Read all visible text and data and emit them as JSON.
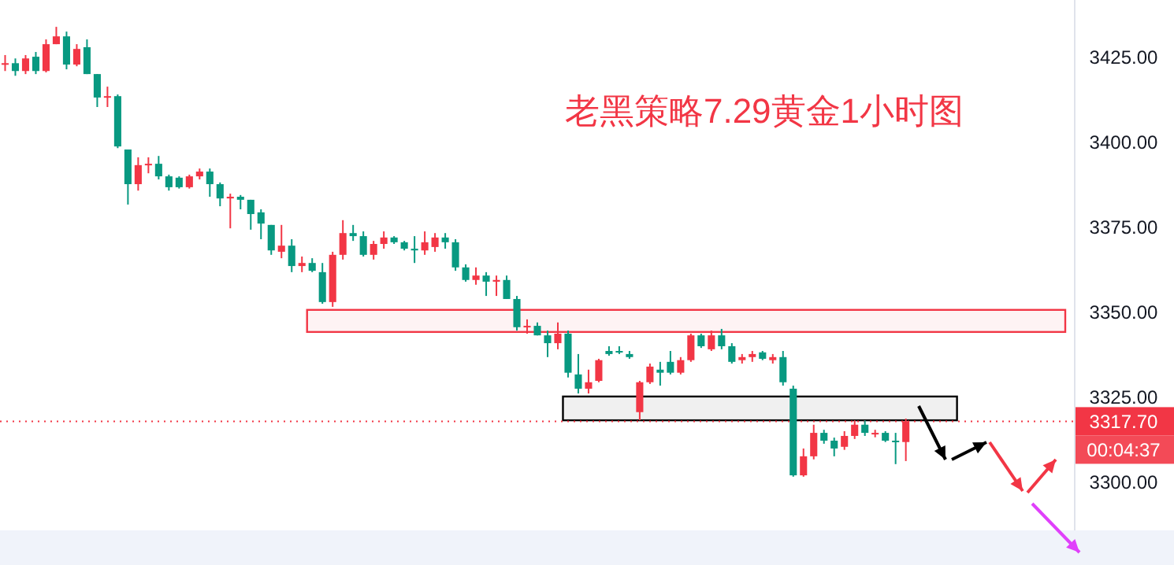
{
  "chart_data": {
    "type": "candlestick",
    "title": "老黑策略7.29黄金1小时图",
    "categories": [
      null,
      null,
      null,
      null,
      null,
      null,
      null,
      null,
      null,
      null,
      null,
      null,
      null,
      null,
      null,
      null,
      null,
      null,
      null,
      null,
      null,
      null,
      null,
      null,
      null,
      null,
      null,
      null,
      null,
      null,
      null,
      null,
      null,
      null,
      null,
      null,
      null,
      null,
      null,
      null,
      null,
      null,
      null,
      null,
      null,
      null,
      null,
      null,
      null,
      null,
      null,
      null,
      null,
      null,
      null,
      null,
      null,
      null,
      null,
      null,
      null,
      null,
      null,
      null,
      null,
      null,
      null,
      null,
      null,
      null,
      null,
      null,
      null,
      null,
      null,
      null,
      null,
      null,
      null,
      null,
      null,
      null,
      null,
      null,
      null,
      null,
      null,
      null,
      null,
      null,
      null,
      null,
      null,
      null,
      null,
      null,
      null,
      null,
      null,
      null,
      null,
      null,
      null,
      null,
      null
    ],
    "ohlc": [
      [
        3423.1,
        3425.5,
        3420.8,
        3423.1
      ],
      [
        3423.1,
        3424.5,
        3419.4,
        3420.8
      ],
      [
        3420.8,
        3425.5,
        3419.9,
        3424.5
      ],
      [
        3425,
        3426.4,
        3419.9,
        3420.8
      ],
      [
        3420.8,
        3430.1,
        3420.4,
        3428.7
      ],
      [
        3428.7,
        3433.8,
        3428.7,
        3431.0
      ],
      [
        3431.0,
        3432.4,
        3421.3,
        3422.7
      ],
      [
        3422.7,
        3428.7,
        3422.2,
        3427.3
      ],
      [
        3427.8,
        3430.1,
        3419.9,
        3419.9
      ],
      [
        3419.9,
        3419.9,
        3410.2,
        3413.0
      ],
      [
        3413.0,
        3416.2,
        3410.2,
        3413.4
      ],
      [
        3413.4,
        3413.9,
        3398.1,
        3398.6
      ],
      [
        3397.7,
        3397.7,
        3381.5,
        3387.5
      ],
      [
        3387.5,
        3395.4,
        3385.6,
        3393.1
      ],
      [
        3393.1,
        3395.4,
        3390.7,
        3393.5
      ],
      [
        3393.5,
        3395.8,
        3388.9,
        3389.8
      ],
      [
        3389.8,
        3390.3,
        3385.6,
        3386.6
      ],
      [
        3389.4,
        3389.8,
        3386.2,
        3386.6
      ],
      [
        3386.6,
        3390.3,
        3386.2,
        3389.8
      ],
      [
        3389.8,
        3392.1,
        3388.9,
        3391.2
      ],
      [
        3391.2,
        3392.1,
        3383.8,
        3387.5
      ],
      [
        3387.5,
        3388.0,
        3381.0,
        3383.3
      ],
      [
        3383.3,
        3384.7,
        3374.5,
        3383.8
      ],
      [
        3383.8,
        3384.3,
        3380.1,
        3382.9
      ],
      [
        3382.9,
        3382.9,
        3374.1,
        3378.7
      ],
      [
        3379.2,
        3380.1,
        3371.3,
        3375.9
      ],
      [
        3375.5,
        3375.5,
        3366.7,
        3368.0
      ],
      [
        3367.6,
        3375.5,
        3365.7,
        3369.4
      ],
      [
        3369.4,
        3371.3,
        3361.6,
        3363.4
      ],
      [
        3363.4,
        3366.2,
        3361.6,
        3364.3
      ],
      [
        3364.3,
        3365.7,
        3361.6,
        3362.0
      ],
      [
        3361.6,
        3364.3,
        3352.3,
        3352.8
      ],
      [
        3352.8,
        3367.6,
        3351.4,
        3366.7
      ],
      [
        3366.7,
        3376.9,
        3365.3,
        3373.1
      ],
      [
        3373.1,
        3375.5,
        3370.8,
        3372.2
      ],
      [
        3372.2,
        3373.6,
        3366.2,
        3366.7
      ],
      [
        3366.7,
        3370.8,
        3365.3,
        3369.9
      ],
      [
        3369.9,
        3373.6,
        3368.5,
        3371.8
      ],
      [
        3371.8,
        3372.2,
        3369.9,
        3370.4
      ],
      [
        3370.4,
        3370.8,
        3368.0,
        3368.5
      ],
      [
        3368.5,
        3372.2,
        3364.3,
        3368.0
      ],
      [
        3368.0,
        3373.6,
        3366.7,
        3370.4
      ],
      [
        3369.0,
        3373.1,
        3367.6,
        3371.8
      ],
      [
        3371.8,
        3373.1,
        3368.5,
        3370.4
      ],
      [
        3370.4,
        3371.3,
        3362.0,
        3363.0
      ],
      [
        3363.0,
        3363.9,
        3358.8,
        3359.3
      ],
      [
        3359.3,
        3363.0,
        3357.9,
        3360.6
      ],
      [
        3360.6,
        3361.6,
        3354.6,
        3358.8
      ],
      [
        3358.8,
        3360.6,
        3354.6,
        3359.3
      ],
      [
        3359.3,
        3360.6,
        3353.7,
        3353.7
      ],
      [
        3353.7,
        3354.6,
        3344.4,
        3345.4
      ],
      [
        3345.4,
        3347.7,
        3343.5,
        3345.8
      ],
      [
        3345.8,
        3346.8,
        3343.0,
        3343.0
      ],
      [
        3343.0,
        3344.4,
        3336.6,
        3340.7
      ],
      [
        3340.7,
        3346.8,
        3338.9,
        3343.5
      ],
      [
        3343.5,
        3344.4,
        3330.6,
        3332.0
      ],
      [
        3331.5,
        3337.5,
        3325.9,
        3327.3
      ],
      [
        3327.3,
        3332.9,
        3325.9,
        3329.2
      ],
      [
        3329.6,
        3336.1,
        3329.2,
        3335.7
      ],
      [
        3338.4,
        3339.8,
        3337.0,
        3337.5
      ],
      [
        3338.4,
        3339.8,
        3337.5,
        3338.0
      ],
      [
        3337.5,
        3338.4,
        3336.1,
        3336.6
      ],
      [
        3320.4,
        3329.6,
        3318.0,
        3329.2
      ],
      [
        3329.2,
        3334.7,
        3328.7,
        3333.8
      ],
      [
        3332.9,
        3335.2,
        3328.2,
        3332.0
      ],
      [
        3335.2,
        3338.4,
        3331.5,
        3332.0
      ],
      [
        3332.0,
        3336.6,
        3331.5,
        3335.7
      ],
      [
        3335.7,
        3343.5,
        3335.2,
        3343.0
      ],
      [
        3343.0,
        3343.5,
        3339.3,
        3339.8
      ],
      [
        3338.9,
        3344.4,
        3338.4,
        3343.0
      ],
      [
        3343.0,
        3344.9,
        3338.9,
        3339.8
      ],
      [
        3339.8,
        3340.7,
        3334.7,
        3335.2
      ],
      [
        3335.7,
        3337.5,
        3334.7,
        3336.6
      ],
      [
        3336.6,
        3338.4,
        3335.2,
        3337.5
      ],
      [
        3338.0,
        3338.4,
        3335.7,
        3336.1
      ],
      [
        3335.7,
        3337.5,
        3334.7,
        3336.6
      ],
      [
        3336.6,
        3338.4,
        3328.2,
        3329.2
      ],
      [
        3327.3,
        3328.2,
        3301.4,
        3301.8
      ],
      [
        3301.8,
        3309.7,
        3301.4,
        3307.4
      ],
      [
        3307.4,
        3316.7,
        3306.5,
        3314.3
      ],
      [
        3314.3,
        3315.2,
        3311.1,
        3312.0
      ],
      [
        3312.0,
        3312.9,
        3307.4,
        3309.7
      ],
      [
        3310.2,
        3314.8,
        3309.3,
        3313.4
      ],
      [
        3313.4,
        3318.0,
        3312.5,
        3316.7
      ],
      [
        3316.7,
        3318.0,
        3313.4,
        3314.3
      ],
      [
        3313.9,
        3315.2,
        3313.0,
        3314.3
      ],
      [
        3314.3,
        3314.8,
        3311.6,
        3312.0
      ],
      [
        3312.0,
        3314.3,
        3305.1,
        3311.6
      ],
      [
        3311.6,
        3318.5,
        3306.0,
        3317.7
      ],
      null,
      null,
      null,
      null,
      null,
      null,
      null,
      null,
      null,
      null,
      null,
      null,
      null,
      null,
      null,
      null
    ],
    "ylim": [
      3285.6,
      3441.7
    ],
    "yticks": [
      {
        "value": 3300,
        "label": "3300.00"
      },
      {
        "value": 3325,
        "label": "3325.00"
      },
      {
        "value": 3350,
        "label": "3350.00"
      },
      {
        "value": 3375,
        "label": "3375.00"
      },
      {
        "value": 3400,
        "label": "3400.00"
      },
      {
        "value": 3425,
        "label": "3425.00"
      }
    ],
    "ref_lines": [
      {
        "axis": "y",
        "value": 3317.7,
        "label": "3317.70",
        "color": "#f23645",
        "line_style": "dotted"
      }
    ],
    "bands": [
      {
        "axis": "y",
        "from": 3344.0,
        "to": 3350.5,
        "color": "#f23645"
      },
      {
        "axis": "y",
        "from": 3318.0,
        "to": 3325.0,
        "color": "#000000"
      }
    ],
    "annotations": [
      "00:04:37"
    ],
    "grid": false
  }
}
